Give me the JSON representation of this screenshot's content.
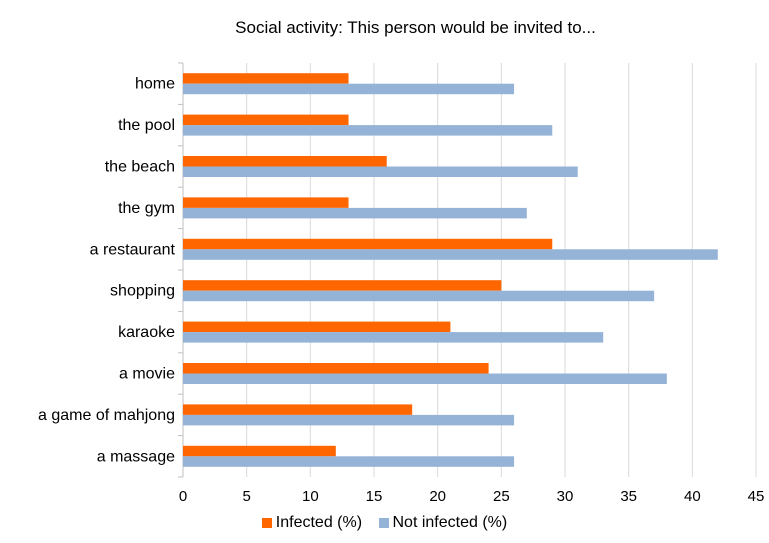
{
  "chart_data": {
    "type": "bar",
    "orientation": "horizontal",
    "title": "Social activity: This person would be invited to...",
    "xlabel": "",
    "ylabel": "",
    "categories": [
      "home",
      "the pool",
      "the beach",
      "the gym",
      "a restaurant",
      "shopping",
      "karaoke",
      "a movie",
      "a game of mahjong",
      "a massage"
    ],
    "series": [
      {
        "name": "Infected (%)",
        "color": "#FF6600",
        "values": [
          13,
          13,
          16,
          13,
          29,
          25,
          21,
          24,
          18,
          12
        ]
      },
      {
        "name": "Not infected (%)",
        "color": "#95B3D7",
        "values": [
          26,
          29,
          31,
          27,
          42,
          37,
          33,
          38,
          26,
          26
        ]
      }
    ],
    "xlim": [
      0,
      45
    ],
    "xticks": [
      0,
      5,
      10,
      15,
      20,
      25,
      30,
      35,
      40,
      45
    ],
    "grid": true,
    "legend_position": "bottom"
  }
}
